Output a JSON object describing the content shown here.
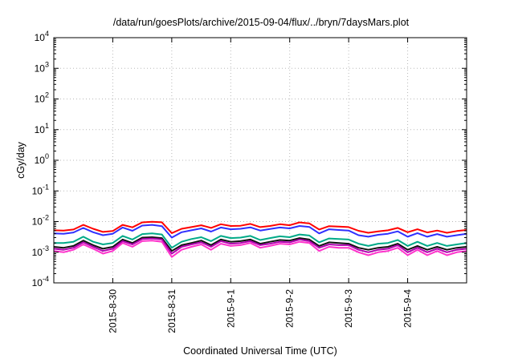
{
  "chart_data": {
    "type": "line",
    "title": "/data/run/goesPlots/archive/2015-09-04/flux/../bryn/7daysMars.plot",
    "xlabel": "Coordinated Universal Time (UTC)",
    "ylabel": "cGy/day",
    "y_scale": "log",
    "ylim": [
      0.0001,
      10000
    ],
    "y_ticks": [
      {
        "value": 0.0001,
        "base": "10",
        "exp": "-4"
      },
      {
        "value": 0.001,
        "base": "10",
        "exp": "-3"
      },
      {
        "value": 0.01,
        "base": "10",
        "exp": "-2"
      },
      {
        "value": 0.1,
        "base": "10",
        "exp": "-1"
      },
      {
        "value": 1,
        "base": "10",
        "exp": "0"
      },
      {
        "value": 10,
        "base": "10",
        "exp": "1"
      },
      {
        "value": 100,
        "base": "10",
        "exp": "2"
      },
      {
        "value": 1000,
        "base": "10",
        "exp": "3"
      },
      {
        "value": 10000,
        "base": "10",
        "exp": "4"
      }
    ],
    "xlim": [
      "2015-08-29 00:00",
      "2015-09-05 00:00"
    ],
    "x_ticks": [
      {
        "value": "2015-08-30 00:00",
        "label": "2015-8-30"
      },
      {
        "value": "2015-08-31 00:00",
        "label": "2015-8-31"
      },
      {
        "value": "2015-09-01 00:00",
        "label": "2015-9-1"
      },
      {
        "value": "2015-09-02 00:00",
        "label": "2015-9-2"
      },
      {
        "value": "2015-09-03 00:00",
        "label": "2015-9-3"
      },
      {
        "value": "2015-09-04 00:00",
        "label": "2015-9-4"
      }
    ],
    "grid": true,
    "x": [
      "2015-08-29 00:00",
      "2015-08-29 04:00",
      "2015-08-29 08:00",
      "2015-08-29 12:00",
      "2015-08-29 16:00",
      "2015-08-29 20:00",
      "2015-08-30 00:00",
      "2015-08-30 04:00",
      "2015-08-30 08:00",
      "2015-08-30 12:00",
      "2015-08-30 16:00",
      "2015-08-30 20:00",
      "2015-08-31 00:00",
      "2015-08-31 04:00",
      "2015-08-31 08:00",
      "2015-08-31 12:00",
      "2015-08-31 16:00",
      "2015-08-31 20:00",
      "2015-09-01 00:00",
      "2015-09-01 04:00",
      "2015-09-01 08:00",
      "2015-09-01 12:00",
      "2015-09-01 16:00",
      "2015-09-01 20:00",
      "2015-09-02 00:00",
      "2015-09-02 04:00",
      "2015-09-02 08:00",
      "2015-09-02 12:00",
      "2015-09-02 16:00",
      "2015-09-02 20:00",
      "2015-09-03 00:00",
      "2015-09-03 04:00",
      "2015-09-03 08:00",
      "2015-09-03 12:00",
      "2015-09-03 16:00",
      "2015-09-03 20:00",
      "2015-09-04 00:00",
      "2015-09-04 04:00",
      "2015-09-04 08:00",
      "2015-09-04 12:00",
      "2015-09-04 16:00",
      "2015-09-04 20:00",
      "2015-09-05 00:00"
    ],
    "series": [
      {
        "color": "#ff0000",
        "values": [
          0.0052,
          0.0051,
          0.0055,
          0.0078,
          0.0058,
          0.0046,
          0.0049,
          0.0078,
          0.0065,
          0.0094,
          0.0098,
          0.0095,
          0.0042,
          0.0058,
          0.0066,
          0.0076,
          0.0062,
          0.0082,
          0.0072,
          0.0073,
          0.0084,
          0.0066,
          0.0072,
          0.0082,
          0.0076,
          0.0094,
          0.0087,
          0.0055,
          0.0071,
          0.0069,
          0.0066,
          0.005,
          0.0043,
          0.0048,
          0.0052,
          0.0062,
          0.0045,
          0.0056,
          0.0044,
          0.0051,
          0.0043,
          0.0049,
          0.0053
        ]
      },
      {
        "color": "#3030ff",
        "values": [
          0.0041,
          0.004,
          0.0044,
          0.0062,
          0.0045,
          0.0036,
          0.004,
          0.0064,
          0.005,
          0.0074,
          0.0078,
          0.0071,
          0.003,
          0.0045,
          0.0052,
          0.006,
          0.0047,
          0.0064,
          0.0056,
          0.0058,
          0.0065,
          0.0051,
          0.0057,
          0.0064,
          0.006,
          0.0072,
          0.0067,
          0.0041,
          0.0056,
          0.0053,
          0.0051,
          0.0036,
          0.0032,
          0.0037,
          0.004,
          0.0048,
          0.0032,
          0.0042,
          0.0032,
          0.0039,
          0.0032,
          0.0036,
          0.004
        ]
      },
      {
        "color": "#00aa88",
        "values": [
          0.002,
          0.002,
          0.0022,
          0.0032,
          0.0022,
          0.0018,
          0.002,
          0.0034,
          0.0026,
          0.0039,
          0.0041,
          0.0038,
          0.0014,
          0.0022,
          0.0027,
          0.0031,
          0.0023,
          0.0034,
          0.0029,
          0.003,
          0.0034,
          0.0025,
          0.0029,
          0.0033,
          0.0031,
          0.0038,
          0.0035,
          0.0021,
          0.0028,
          0.0027,
          0.0026,
          0.0019,
          0.0016,
          0.0019,
          0.002,
          0.0025,
          0.0016,
          0.0022,
          0.0016,
          0.002,
          0.0016,
          0.0018,
          0.002
        ]
      },
      {
        "color": "#111111",
        "values": [
          0.0015,
          0.0014,
          0.0016,
          0.0024,
          0.0017,
          0.0013,
          0.0015,
          0.0026,
          0.002,
          0.003,
          0.0031,
          0.0029,
          0.0011,
          0.0017,
          0.002,
          0.0024,
          0.0017,
          0.0026,
          0.0022,
          0.0023,
          0.0026,
          0.0019,
          0.0022,
          0.0025,
          0.0024,
          0.0029,
          0.0026,
          0.0016,
          0.0021,
          0.002,
          0.0019,
          0.0014,
          0.0012,
          0.0014,
          0.0015,
          0.0019,
          0.0012,
          0.0016,
          0.0012,
          0.0015,
          0.0012,
          0.0014,
          0.0015
        ]
      },
      {
        "color": "#b000b0",
        "values": [
          0.0013,
          0.0012,
          0.0014,
          0.0021,
          0.0015,
          0.0011,
          0.0013,
          0.0023,
          0.0018,
          0.0027,
          0.0028,
          0.0026,
          0.0009,
          0.0015,
          0.0018,
          0.0021,
          0.0015,
          0.0023,
          0.0019,
          0.002,
          0.0023,
          0.0017,
          0.0019,
          0.0022,
          0.0021,
          0.0026,
          0.0023,
          0.0014,
          0.0018,
          0.0017,
          0.0017,
          0.0012,
          0.001,
          0.0012,
          0.0013,
          0.0017,
          0.001,
          0.0014,
          0.001,
          0.0013,
          0.001,
          0.0012,
          0.0013
        ]
      },
      {
        "color": "#ff33cc",
        "values": [
          0.0011,
          0.001,
          0.0012,
          0.0018,
          0.0013,
          0.0009,
          0.0011,
          0.002,
          0.0015,
          0.0023,
          0.0024,
          0.0022,
          0.0007,
          0.0012,
          0.0015,
          0.0018,
          0.0012,
          0.0019,
          0.0016,
          0.0017,
          0.002,
          0.0014,
          0.0016,
          0.0019,
          0.0018,
          0.0022,
          0.002,
          0.0011,
          0.0015,
          0.0014,
          0.0014,
          0.001,
          0.0008,
          0.001,
          0.0011,
          0.0014,
          0.0008,
          0.0012,
          0.0008,
          0.0011,
          0.0008,
          0.001,
          0.0011
        ]
      }
    ]
  }
}
